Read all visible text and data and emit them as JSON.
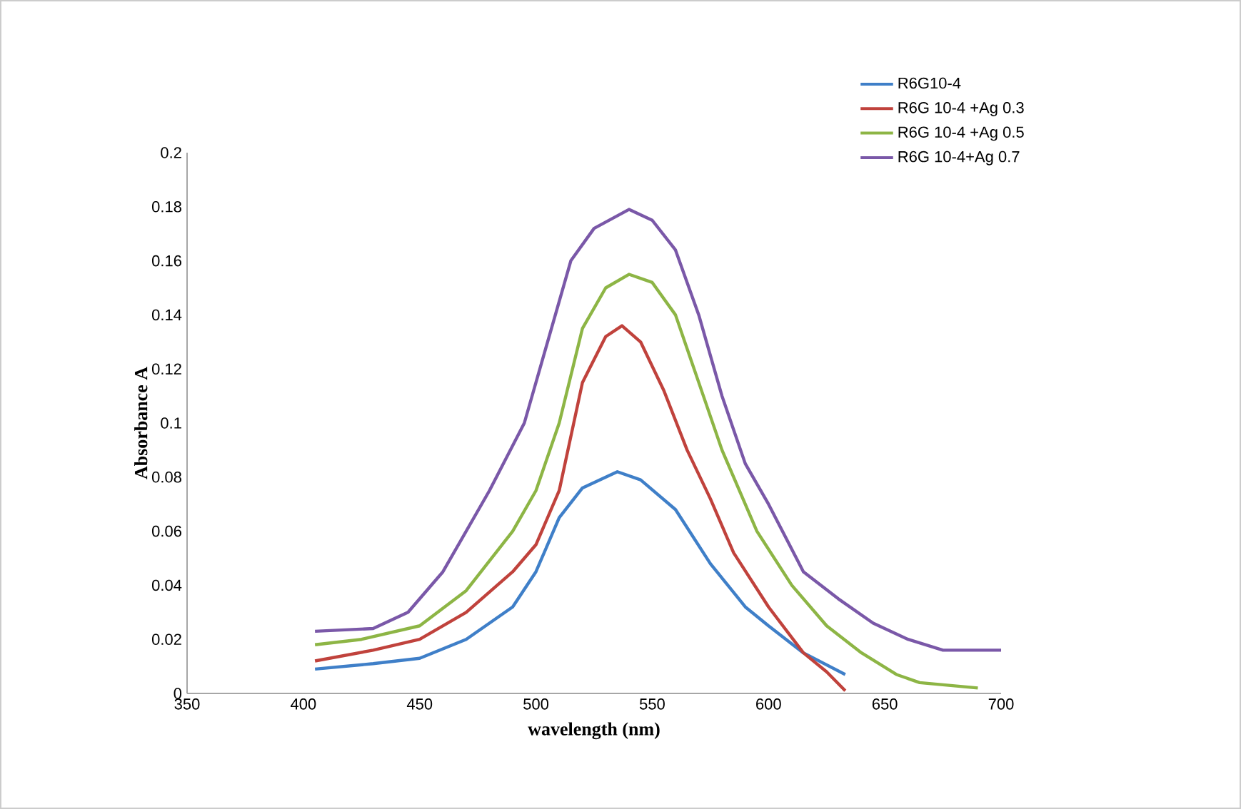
{
  "chart_data": {
    "type": "line",
    "xlabel": "wavelength (nm)",
    "ylabel": "Absorbance A",
    "legend": "top right",
    "xlim": [
      350,
      700
    ],
    "xticks": [
      350,
      400,
      450,
      500,
      550,
      600,
      650,
      700
    ],
    "ylim": [
      0,
      0.2
    ],
    "yticks": [
      0,
      0.02,
      0.04,
      0.06,
      0.08,
      0.1,
      0.12,
      0.14,
      0.16,
      0.18,
      0.2
    ],
    "series": [
      {
        "name": "R6G10-4",
        "color": "#3f7fc8",
        "x": [
          405,
          430,
          450,
          470,
          490,
          500,
          510,
          520,
          535,
          545,
          560,
          575,
          590,
          600,
          615,
          633
        ],
        "values": [
          0.009,
          0.011,
          0.013,
          0.02,
          0.032,
          0.045,
          0.065,
          0.076,
          0.082,
          0.079,
          0.068,
          0.048,
          0.032,
          0.025,
          0.015,
          0.007
        ]
      },
      {
        "name": "R6G 10-4 +Ag 0.3",
        "color": "#c0423c",
        "x": [
          405,
          430,
          450,
          470,
          490,
          500,
          510,
          520,
          530,
          537,
          545,
          555,
          565,
          575,
          585,
          600,
          615,
          625,
          633
        ],
        "values": [
          0.012,
          0.016,
          0.02,
          0.03,
          0.045,
          0.055,
          0.075,
          0.115,
          0.132,
          0.136,
          0.13,
          0.112,
          0.09,
          0.072,
          0.052,
          0.032,
          0.015,
          0.008,
          0.001
        ]
      },
      {
        "name": "R6G 10-4 +Ag 0.5",
        "color": "#8db545",
        "x": [
          405,
          425,
          450,
          470,
          490,
          500,
          510,
          520,
          530,
          540,
          550,
          560,
          570,
          580,
          595,
          610,
          625,
          640,
          655,
          665,
          690
        ],
        "values": [
          0.018,
          0.02,
          0.025,
          0.038,
          0.06,
          0.075,
          0.1,
          0.135,
          0.15,
          0.155,
          0.152,
          0.14,
          0.115,
          0.09,
          0.06,
          0.04,
          0.025,
          0.015,
          0.007,
          0.004,
          0.002
        ]
      },
      {
        "name": "R6G 10-4+Ag 0.7",
        "color": "#7a58a8",
        "x": [
          405,
          430,
          445,
          460,
          480,
          495,
          505,
          515,
          525,
          540,
          550,
          560,
          570,
          580,
          590,
          600,
          615,
          630,
          645,
          660,
          675,
          700
        ],
        "values": [
          0.023,
          0.024,
          0.03,
          0.045,
          0.075,
          0.1,
          0.13,
          0.16,
          0.172,
          0.179,
          0.175,
          0.164,
          0.14,
          0.11,
          0.085,
          0.07,
          0.045,
          0.035,
          0.026,
          0.02,
          0.016,
          0.016
        ]
      }
    ]
  }
}
